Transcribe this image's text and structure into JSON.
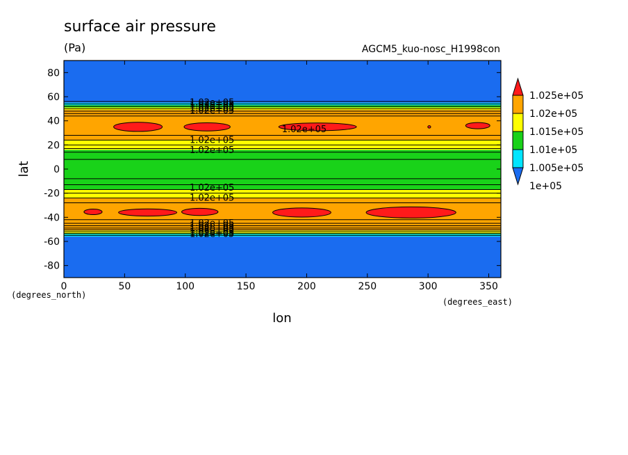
{
  "chart_data": {
    "type": "heatmap",
    "title": "surface air pressure",
    "units": "(Pa)",
    "run_label": "AGCM5_kuo-nosc_H1998con",
    "xlabel": "lon",
    "ylabel": "lat",
    "x_units_label": "(degrees_east)",
    "y_units_label": "(degrees_north)",
    "xlim": [
      0,
      360
    ],
    "ylim": [
      -90,
      90
    ],
    "x_ticks": [
      0,
      50,
      100,
      150,
      200,
      250,
      300,
      350
    ],
    "y_ticks": [
      -80,
      -60,
      -40,
      -20,
      0,
      20,
      40,
      60,
      80
    ],
    "x_tick_labels": [
      "0",
      "50",
      "100",
      "150",
      "200",
      "250",
      "300",
      "350"
    ],
    "y_tick_labels": [
      "-80",
      "-60",
      "-40",
      "-20",
      "0",
      "20",
      "40",
      "60",
      "80"
    ],
    "color_levels": [
      {
        "label": "1e+05",
        "color": "#1a6cf0"
      },
      {
        "label": "1.005e+05",
        "color": "#00e5ff"
      },
      {
        "label": "1.01e+05",
        "color": "#19d219"
      },
      {
        "label": "1.015e+05",
        "color": "#ffff00"
      },
      {
        "label": "1.02e+05",
        "color": "#ffa500"
      },
      {
        "label": "1.025e+05",
        "color": "#ff1a1a"
      }
    ],
    "below_color": "#1a6cf0",
    "bands": [
      {
        "lat_min": -90,
        "lat_max": -56,
        "level": 0
      },
      {
        "lat_min": -56,
        "lat_max": -54,
        "level": 1
      },
      {
        "lat_min": -54,
        "lat_max": -53,
        "level": 2
      },
      {
        "lat_min": -53,
        "lat_max": -51,
        "level": 3
      },
      {
        "lat_min": -51,
        "lat_max": -24,
        "level": 4
      },
      {
        "lat_min": -24,
        "lat_max": -17,
        "level": 3
      },
      {
        "lat_min": -17,
        "lat_max": 16,
        "level": 2
      },
      {
        "lat_min": 16,
        "lat_max": 24,
        "level": 3
      },
      {
        "lat_min": 24,
        "lat_max": 49,
        "level": 4
      },
      {
        "lat_min": 49,
        "lat_max": 51,
        "level": 3
      },
      {
        "lat_min": 51,
        "lat_max": 53,
        "level": 2
      },
      {
        "lat_min": 53,
        "lat_max": 55,
        "level": 1
      },
      {
        "lat_min": 55,
        "lat_max": 90,
        "level": 0
      }
    ],
    "contour_lats": [
      -55,
      -53.5,
      -52,
      -50.5,
      -49,
      -47,
      -45,
      -42,
      -28,
      -24,
      -20,
      -17,
      -13,
      -8,
      8,
      14,
      17,
      20,
      24,
      28,
      44,
      46,
      48,
      50,
      52,
      54,
      56
    ],
    "high_cells": [
      {
        "lon": 61,
        "lat": 35,
        "dlon": 20,
        "dlat": 3.8
      },
      {
        "lon": 118,
        "lat": 35,
        "dlon": 19,
        "dlat": 3.4
      },
      {
        "lon": 209,
        "lat": 35,
        "dlon": 32,
        "dlat": 3.2
      },
      {
        "lon": 341,
        "lat": 36,
        "dlon": 10,
        "dlat": 2.6
      },
      {
        "lon": 301,
        "lat": 35,
        "dlon": 1.2,
        "dlat": 1.0
      },
      {
        "lon": 24,
        "lat": -35.5,
        "dlon": 7.5,
        "dlat": 2.3
      },
      {
        "lon": 69,
        "lat": -36,
        "dlon": 24,
        "dlat": 3.0
      },
      {
        "lon": 112,
        "lat": -35.5,
        "dlon": 15,
        "dlat": 3.0
      },
      {
        "lon": 196,
        "lat": -36,
        "dlon": 24,
        "dlat": 3.8
      },
      {
        "lon": 286,
        "lat": -36,
        "dlon": 37,
        "dlat": 4.6
      }
    ],
    "contour_labels": [
      {
        "text": "1.02e+05",
        "lon": 122,
        "lat": 55
      },
      {
        "text": "1.02e+05",
        "lon": 122,
        "lat": 53.5
      },
      {
        "text": "1.02e+05",
        "lon": 122,
        "lat": 52
      },
      {
        "text": "1.02e+05",
        "lon": 122,
        "lat": 50.5
      },
      {
        "text": "1.02e+05",
        "lon": 122,
        "lat": 48.5
      },
      {
        "text": "1.02e+05",
        "lon": 198,
        "lat": 33
      },
      {
        "text": "1.02e+05",
        "lon": 122,
        "lat": 24
      },
      {
        "text": "1.02e+05",
        "lon": 122,
        "lat": 15.5
      },
      {
        "text": "1.02e+05",
        "lon": 122,
        "lat": -15.5
      },
      {
        "text": "1.02e+05",
        "lon": 122,
        "lat": -24
      },
      {
        "text": "1.02e+05",
        "lon": 122,
        "lat": -45
      },
      {
        "text": "1.02e+05",
        "lon": 122,
        "lat": -47
      },
      {
        "text": "1.02e+05",
        "lon": 122,
        "lat": -49
      },
      {
        "text": "1.02e+05",
        "lon": 122,
        "lat": -50.5
      },
      {
        "text": "1.02e+05",
        "lon": 122,
        "lat": -52.5
      },
      {
        "text": "1.02e+05",
        "lon": 122,
        "lat": -54
      }
    ]
  }
}
